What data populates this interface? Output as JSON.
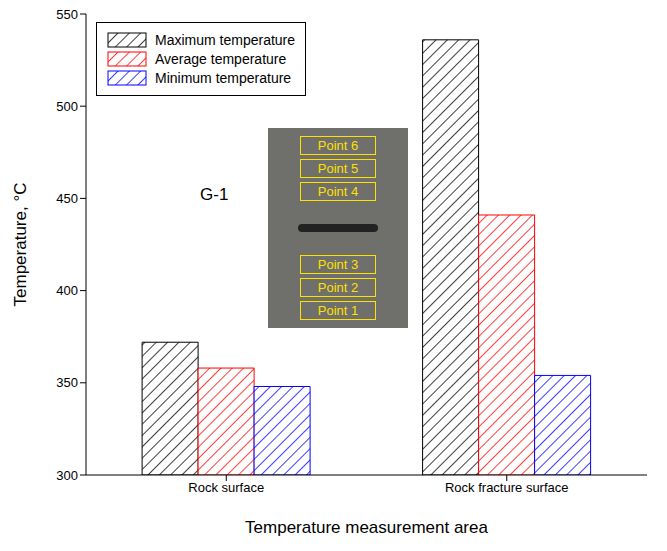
{
  "chart_data": {
    "type": "bar",
    "x_label": "Temperature measurement area",
    "y_label": "Temperature, °C",
    "categories": [
      "Rock surface",
      "Rock fracture surface"
    ],
    "series": [
      {
        "name": "Maximum temperature",
        "color": "#000000",
        "values": [
          372,
          536
        ]
      },
      {
        "name": "Average temperature",
        "color": "#ff0000",
        "values": [
          358,
          441
        ]
      },
      {
        "name": "Minimum temperature",
        "color": "#0000ff",
        "values": [
          348,
          354
        ]
      }
    ],
    "ylim": [
      300,
      550
    ],
    "yticks": [
      300,
      350,
      400,
      450,
      500,
      550
    ],
    "grid": false,
    "legend": "upper left",
    "annotations": [
      "G-1",
      "Point 6",
      "Point 5",
      "Point 4",
      "Point 3",
      "Point 2",
      "Point 1"
    ]
  }
}
